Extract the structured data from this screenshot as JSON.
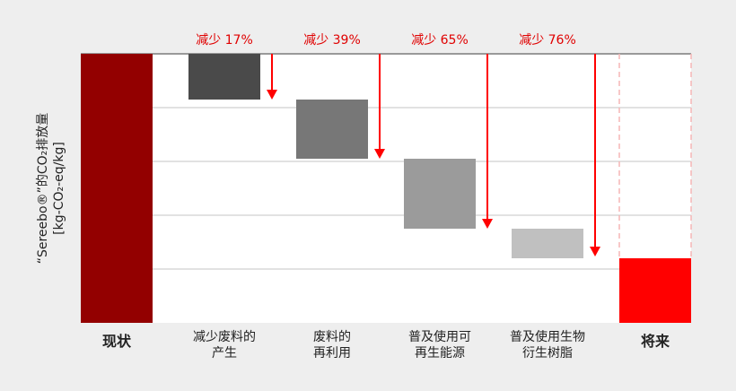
{
  "chart_data": {
    "type": "waterfall",
    "ylabel": [
      "“Sereebo®”的CO₂排放量",
      "[kg-CO₂-eq/kg]"
    ],
    "ylim": [
      0,
      100
    ],
    "grid": true,
    "categories": [
      {
        "lines": [
          "现状"
        ],
        "bold": true
      },
      {
        "lines": [
          "减少废料的",
          "产生"
        ]
      },
      {
        "lines": [
          "废料的",
          "再利用"
        ]
      },
      {
        "lines": [
          "普及使用可",
          "再生能源"
        ]
      },
      {
        "lines": [
          "普及使用生物",
          "衍生树脂"
        ]
      },
      {
        "lines": [
          "将来"
        ],
        "bold": true
      }
    ],
    "bars": [
      {
        "from": 0,
        "to": 100,
        "color": "#930000"
      },
      {
        "from": 83,
        "to": 100,
        "color": "#4a4a4a"
      },
      {
        "from": 61,
        "to": 83,
        "color": "#777777"
      },
      {
        "from": 35,
        "to": 61,
        "color": "#9b9b9b"
      },
      {
        "from": 24,
        "to": 35,
        "color": "#c0c0c0"
      },
      {
        "from": 0,
        "to": 24,
        "color": "#ff0000"
      }
    ],
    "reductions": [
      "减少 17%",
      "减少 39%",
      "减少 65%",
      "减少 76%"
    ],
    "reduction_values": [
      83,
      61,
      35,
      24
    ],
    "arrow_color": "#ff0000"
  }
}
